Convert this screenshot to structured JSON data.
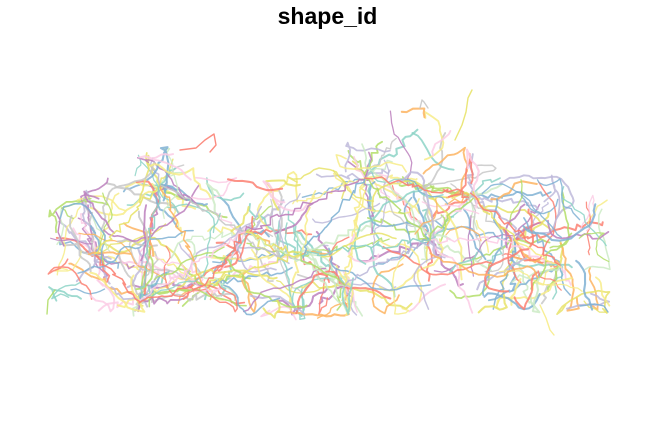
{
  "title": "shape_id",
  "palette": [
    "#8DD3C7",
    "#E8E36A",
    "#BEBADA",
    "#FB8072",
    "#80B1D3",
    "#FDB462",
    "#B3DE69",
    "#FCCDE5",
    "#C8C8C8",
    "#BC80BD",
    "#CCEBC5",
    "#F7EC88"
  ],
  "map": {
    "kind": "route shape network",
    "legend": "none",
    "background": "#FFFFFF"
  }
}
